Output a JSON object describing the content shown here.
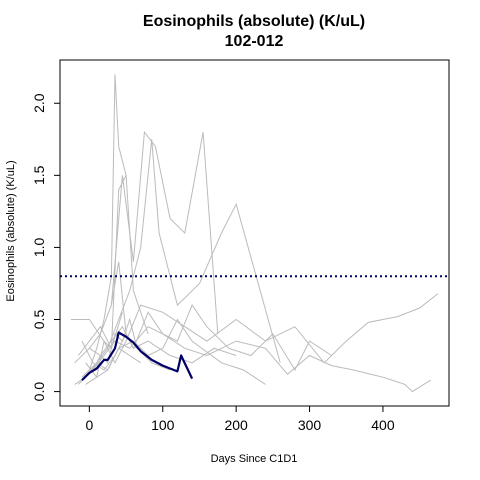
{
  "chart_data": {
    "type": "line",
    "title": "Eosinophils (absolute) (K/uL)",
    "subtitle": "102-012",
    "xlabel": "Days Since C1D1",
    "ylabel": "Eosinophils (absolute) (K/uL)",
    "xlim": [
      -40,
      490
    ],
    "ylim": [
      -0.1,
      2.3
    ],
    "xticks": [
      0,
      100,
      200,
      300,
      400
    ],
    "yticks": [
      0.0,
      0.5,
      1.0,
      1.5,
      2.0
    ],
    "xtick_labels": [
      "0",
      "100",
      "200",
      "300",
      "400"
    ],
    "ytick_labels": [
      "0.0",
      "0.5",
      "1.0",
      "1.5",
      "2.0"
    ],
    "reference_line": {
      "y": 0.8,
      "style": "dotted",
      "color": "#000066"
    },
    "colors": {
      "highlight": "#000066",
      "background": "#bbbbbb"
    },
    "highlight_series": {
      "x": [
        -10,
        0,
        10,
        20,
        25,
        35,
        40,
        50,
        60,
        70,
        85,
        100,
        120,
        125,
        140
      ],
      "y": [
        0.08,
        0.13,
        0.16,
        0.22,
        0.22,
        0.3,
        0.41,
        0.38,
        0.34,
        0.28,
        0.22,
        0.18,
        0.14,
        0.25,
        0.09
      ]
    },
    "background_series": [
      {
        "x": [
          -25,
          0,
          20,
          35,
          50,
          70,
          100,
          130,
          160,
          200,
          240,
          280,
          320,
          350,
          380,
          420,
          450,
          475
        ],
        "y": [
          0.5,
          0.5,
          0.35,
          0.2,
          0.35,
          0.6,
          0.55,
          0.45,
          0.35,
          0.5,
          0.35,
          0.45,
          0.2,
          0.35,
          0.48,
          0.52,
          0.58,
          0.68
        ]
      },
      {
        "x": [
          -10,
          0,
          10,
          20,
          30,
          35,
          40,
          50,
          60,
          80
        ],
        "y": [
          0.1,
          0.15,
          0.3,
          0.5,
          0.8,
          2.2,
          1.7,
          1.5,
          0.7,
          0.4
        ]
      },
      {
        "x": [
          -20,
          0,
          15,
          30,
          45,
          60,
          75,
          90,
          110,
          130,
          155,
          175
        ],
        "y": [
          0.2,
          0.3,
          0.4,
          0.6,
          1.5,
          0.9,
          1.8,
          1.7,
          1.2,
          1.1,
          1.8,
          0.4
        ]
      },
      {
        "x": [
          -10,
          10,
          25,
          40,
          55,
          70,
          85,
          95,
          120,
          150,
          180,
          200,
          230,
          260
        ],
        "y": [
          0.1,
          0.2,
          0.3,
          0.5,
          0.7,
          1.0,
          1.75,
          1.1,
          0.6,
          0.75,
          1.1,
          1.3,
          0.75,
          0.2
        ]
      },
      {
        "x": [
          -15,
          5,
          20,
          35,
          55,
          80,
          100,
          120,
          140,
          160,
          190,
          220,
          250,
          280,
          300,
          330
        ],
        "y": [
          0.05,
          0.15,
          0.25,
          0.35,
          0.3,
          0.45,
          0.4,
          0.35,
          0.6,
          0.45,
          0.3,
          0.25,
          0.4,
          0.15,
          0.35,
          0.25
        ]
      },
      {
        "x": [
          -5,
          10,
          25,
          40,
          60,
          80,
          100,
          120,
          140,
          180,
          210,
          240
        ],
        "y": [
          0.2,
          0.1,
          0.15,
          0.3,
          0.35,
          0.25,
          0.3,
          0.5,
          0.35,
          0.2,
          0.15,
          0.05
        ]
      },
      {
        "x": [
          0,
          15,
          30,
          45,
          60,
          80,
          110,
          140,
          170,
          200
        ],
        "y": [
          0.3,
          0.25,
          0.35,
          0.45,
          0.3,
          0.35,
          0.25,
          0.2,
          0.3,
          0.25
        ]
      },
      {
        "x": [
          -20,
          -5,
          10,
          25,
          40,
          55,
          70
        ],
        "y": [
          0.05,
          0.1,
          0.2,
          0.15,
          0.3,
          0.25,
          0.2
        ]
      },
      {
        "x": [
          -10,
          5,
          20,
          35,
          50,
          65,
          85,
          110
        ],
        "y": [
          0.35,
          0.2,
          0.15,
          0.25,
          0.4,
          0.3,
          0.2,
          0.15
        ]
      },
      {
        "x": [
          -15,
          0,
          15,
          30,
          45
        ],
        "y": [
          0.25,
          0.35,
          0.45,
          0.3,
          0.55
        ]
      },
      {
        "x": [
          30,
          40,
          50,
          60,
          80,
          100,
          130,
          160,
          200,
          240,
          270,
          300,
          330,
          360,
          400,
          430,
          440,
          465
        ],
        "y": [
          0.6,
          0.9,
          0.4,
          0.3,
          0.55,
          0.4,
          0.3,
          0.25,
          0.35,
          0.3,
          0.12,
          0.25,
          0.18,
          0.15,
          0.1,
          0.05,
          0.0,
          0.08
        ]
      },
      {
        "x": [
          -5,
          10,
          20,
          30,
          40,
          50
        ],
        "y": [
          0.05,
          0.1,
          0.35,
          0.3,
          1.4,
          1.5
        ]
      },
      {
        "x": [
          5,
          15,
          25,
          35,
          45,
          55,
          65
        ],
        "y": [
          0.15,
          0.25,
          0.2,
          0.4,
          0.35,
          0.5,
          0.3
        ]
      }
    ]
  }
}
